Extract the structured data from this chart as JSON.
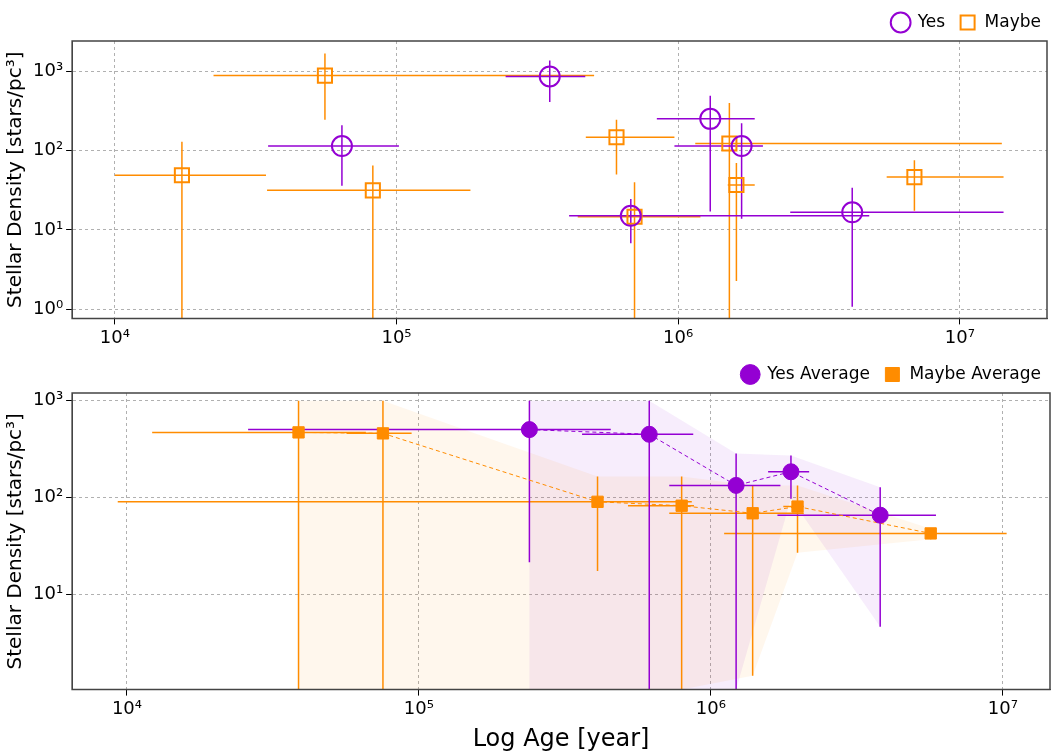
{
  "chart_data": [
    {
      "type": "scatter",
      "ylabel": "Stellar Density [stars/pc³]",
      "log": "xy",
      "grid": true,
      "legend": "top right",
      "xlim": [
        7050,
        20400000
      ],
      "ylim": [
        0.77,
        2400
      ],
      "xticks": [
        {
          "value": 10000,
          "label": "10⁴"
        },
        {
          "value": 100000,
          "label": "10⁵"
        },
        {
          "value": 1000000,
          "label": "10⁶"
        },
        {
          "value": 10000000,
          "label": "10⁷"
        }
      ],
      "yticks": [
        {
          "value": 1,
          "label": "10⁰"
        },
        {
          "value": 10,
          "label": "10¹"
        },
        {
          "value": 100,
          "label": "10²"
        },
        {
          "value": 1000,
          "label": "10³"
        }
      ],
      "series": [
        {
          "name": "Yes",
          "color": "#9400d3",
          "marker": "circle",
          "x": [
            64000,
            350000,
            1300000,
            1680000,
            679000,
            4150000
          ],
          "values": [
            114,
            858,
            251,
            114,
            15.1,
            16.7
          ],
          "xerrors": [
            [
              35000,
              102000
            ],
            [
              244000,
              468000
            ],
            [
              840000,
              1870000
            ],
            [
              970000,
              2000000
            ],
            [
              410000,
              4770000
            ],
            [
              2500000,
              14300000
            ]
          ],
          "errors": [
            [
              36,
              209
            ],
            [
              408,
              1360
            ],
            [
              17.1,
              489
            ],
            [
              13.9,
              221
            ],
            [
              6.8,
              24.5
            ],
            [
              1.08,
              34
            ]
          ]
        },
        {
          "name": "Maybe",
          "color": "#ff8c00",
          "marker": "square",
          "x": [
            17300,
            55700,
            82400,
            604000,
            700000,
            1520000,
            1610000,
            6900000
          ],
          "values": [
            48.9,
            880,
            31.6,
            147,
            14.7,
            123,
            36.9,
            46.4
          ],
          "xerrors": [
            [
              10000,
              34400
            ],
            [
              22400,
              503000
            ],
            [
              34700,
              183000
            ],
            [
              470000,
              970000
            ],
            [
              440000,
              1200000
            ],
            [
              1150000,
              14100000
            ],
            [
              1500000,
              1870000
            ],
            [
              5500000,
              14300000
            ]
          ],
          "errors": [
            [
              0.77,
              129
            ],
            [
              245,
              1670
            ],
            [
              0.77,
              65
            ],
            [
              50,
              245
            ],
            [
              0.77,
              40
            ],
            [
              0.77,
              398
            ],
            [
              2.27,
              70
            ],
            [
              17.5,
              75.5
            ]
          ]
        }
      ]
    },
    {
      "type": "line",
      "xlabel": "Log Age [year]",
      "ylabel": "Stellar Density [stars/pc³]",
      "log": "xy",
      "grid": true,
      "legend": "top right",
      "line_style": "dashed",
      "xlim": [
        6490,
        14500000
      ],
      "ylim": [
        1.03,
        1200
      ],
      "xticks": [
        {
          "value": 10000,
          "label": "10⁴"
        },
        {
          "value": 100000,
          "label": "10⁵"
        },
        {
          "value": 1000000,
          "label": "10⁶"
        },
        {
          "value": 10000000,
          "label": "10⁷"
        }
      ],
      "yticks": [
        {
          "value": 10,
          "label": "10¹"
        },
        {
          "value": 100,
          "label": "10²"
        },
        {
          "value": 1000,
          "label": "10³"
        }
      ],
      "series": [
        {
          "name": "Yes Average",
          "color": "#9400d3",
          "marker": "circle",
          "x": [
            239000,
            615000,
            1220000,
            1880000,
            3800000
          ],
          "values": [
            502,
            449,
            133,
            184,
            65.5
          ],
          "xerrors": [
            [
              26000,
              454000
            ],
            [
              362000,
              870000
            ],
            [
              720000,
              1730000
            ],
            [
              1570000,
              2170000
            ],
            [
              1690000,
              5900000
            ]
          ],
          "errors": [
            [
              21.3,
              1000
            ],
            [
              1.03,
              1000
            ],
            [
              1.03,
              284
            ],
            [
              97,
              271
            ],
            [
              4.6,
              127
            ]
          ],
          "lower": [
            1.03,
            1.03,
            1.03,
            97,
            4.6
          ],
          "upper": [
            1000,
            1000,
            284,
            271,
            127
          ]
        },
        {
          "name": "Maybe Average",
          "color": "#ff8c00",
          "marker": "square",
          "x": [
            38700,
            75300,
            409000,
            794000,
            1390000,
            1980000,
            5660000
          ],
          "values": [
            470,
            459,
            90,
            82,
            68.5,
            80.4,
            42.4
          ],
          "xerrors": [
            [
              12200,
              65800
            ],
            [
              56500,
              94400
            ],
            [
              9300,
              860000
            ],
            [
              520000,
              875000
            ],
            [
              720000,
              2080000
            ],
            [
              1770000,
              2080000
            ],
            [
              1110000,
              10300000
            ]
          ],
          "errors": [
            [
              1.03,
              1000
            ],
            [
              1.03,
              1000
            ],
            [
              17.3,
              164
            ],
            [
              1.03,
              164
            ],
            [
              1.43,
              133
            ],
            [
              26.8,
              133
            ],
            [
              36.9,
              47.5
            ]
          ],
          "lower": [
            1.03,
            1.03,
            1.03,
            1.03,
            1.43,
            26.8,
            36.9
          ],
          "upper": [
            1000,
            1000,
            164,
            164,
            133,
            133,
            47.5
          ]
        }
      ]
    }
  ]
}
